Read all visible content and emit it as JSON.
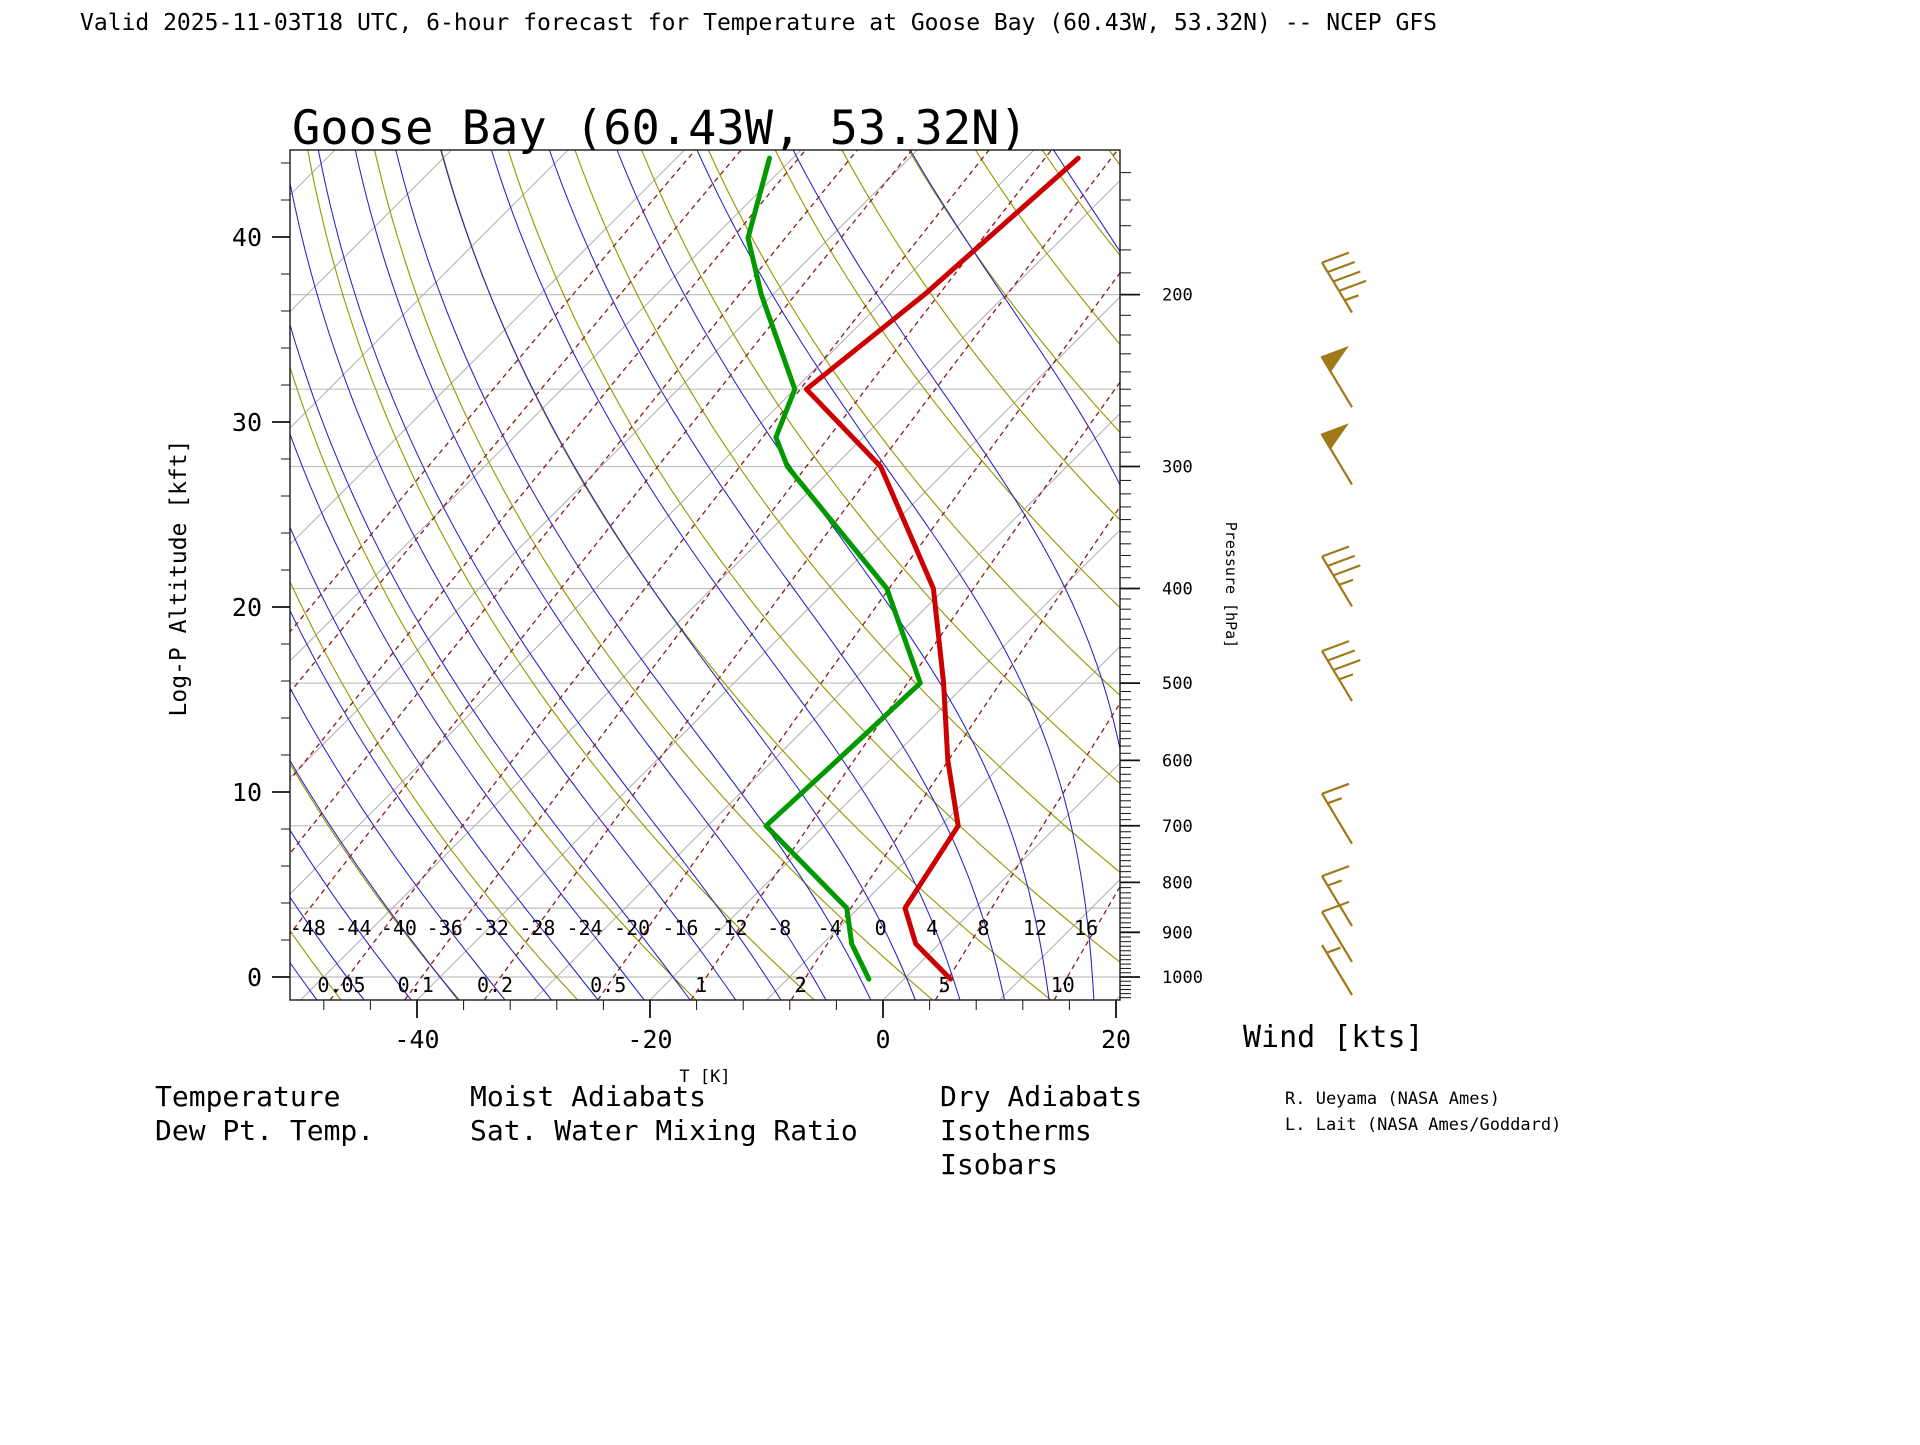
{
  "header": {
    "title": "Valid 2025-11-03T18 UTC, 6-hour forecast for Temperature at Goose Bay (60.43W, 53.32N) -- NCEP GFS"
  },
  "chart_data": {
    "type": "skewt_logp_sounding",
    "title": "Goose Bay (60.43W, 53.32N)",
    "station": {
      "name": "Goose Bay",
      "lon": "60.43W",
      "lat": "53.32N"
    },
    "axes": {
      "x": {
        "label": "T [K]",
        "ticks": [
          -40,
          -20,
          0,
          20
        ]
      },
      "left": {
        "label": "Log-P Altitude [kft]",
        "ticks": [
          0,
          10,
          20,
          30,
          40
        ]
      },
      "right": {
        "label": "Pressure [hPa]",
        "ticks": [
          200,
          300,
          400,
          500,
          600,
          700,
          800,
          900,
          1000
        ]
      }
    },
    "grid": {
      "isobars_hPa": [
        200,
        250,
        300,
        400,
        500,
        700,
        850,
        1000
      ],
      "isotherms_C": {
        "min": -130,
        "max": 30,
        "step": 10
      },
      "dry_adiabats_C": {
        "min": -50,
        "max": 130,
        "step": 10
      },
      "moist_adiabats_C": {
        "min": -60,
        "max": 32,
        "step": 4
      },
      "moist_adiabat_labels_C": [
        -48,
        -44,
        -40,
        -36,
        -32,
        -28,
        -24,
        -20,
        -16,
        -12,
        -8,
        -4,
        0,
        4,
        8,
        12,
        16
      ],
      "mixing_ratio_g_per_kg": [
        0.001,
        0.002,
        0.005,
        0.01,
        0.02,
        0.05,
        0.1,
        0.2,
        0.5,
        1,
        2,
        5,
        10,
        20
      ],
      "mixing_ratio_labels": [
        "0.05",
        "0.1",
        "0.2",
        "0.5",
        "1",
        "2",
        "5",
        "10"
      ]
    },
    "temperature_profile_p_hPa_T_C": [
      [
        1005,
        4
      ],
      [
        925,
        -2
      ],
      [
        850,
        -6
      ],
      [
        700,
        -8.5
      ],
      [
        600,
        -15
      ],
      [
        500,
        -22
      ],
      [
        400,
        -31
      ],
      [
        300,
        -46
      ],
      [
        250,
        -59
      ],
      [
        200,
        -57
      ],
      [
        145,
        -55.5
      ]
    ],
    "dewpoint_profile_p_hPa_T_C": [
      [
        1005,
        -3
      ],
      [
        925,
        -7.5
      ],
      [
        850,
        -11
      ],
      [
        700,
        -25
      ],
      [
        600,
        -24.5
      ],
      [
        500,
        -24
      ],
      [
        400,
        -35
      ],
      [
        300,
        -54
      ],
      [
        280,
        -57.5
      ],
      [
        250,
        -60
      ],
      [
        200,
        -71
      ],
      [
        175,
        -77
      ],
      [
        145,
        -82
      ]
    ],
    "wind_barbs_p_hPa_kts": [
      [
        1000,
        5
      ],
      [
        925,
        10
      ],
      [
        850,
        15
      ],
      [
        700,
        15
      ],
      [
        500,
        35
      ],
      [
        400,
        35
      ],
      [
        300,
        50
      ],
      [
        250,
        50
      ],
      [
        200,
        45
      ]
    ],
    "wind_units_label": "Wind [kts]",
    "colors": {
      "temperature": "#cc0000",
      "dewpoint": "#009900",
      "moist_adiabat": "#2222cc",
      "dry_adiabat": "#999900",
      "isotherm": "#b3b3b3",
      "isobar": "#c0c0c0",
      "mixing_ratio": "#8b1a1a",
      "wind": "#a07818",
      "title": "#999999",
      "axis": "#111111"
    }
  },
  "legend": {
    "items": [
      {
        "label": "Temperature",
        "color": "#cc0000"
      },
      {
        "label": "Dew Pt. Temp.",
        "color": "#009900"
      },
      {
        "label": "Moist Adiabats",
        "color": "#2222cc"
      },
      {
        "label": "Sat. Water Mixing Ratio",
        "color": "#aa2222"
      },
      {
        "label": "Dry Adiabats",
        "color": "#999900"
      },
      {
        "label": "Isotherms",
        "color": "#b3b3b3"
      },
      {
        "label": "Isobars",
        "color": "#cccccc"
      }
    ]
  },
  "credits": {
    "line1": "R. Ueyama (NASA Ames)",
    "line2": "L. Lait (NASA Ames/Goddard)"
  }
}
